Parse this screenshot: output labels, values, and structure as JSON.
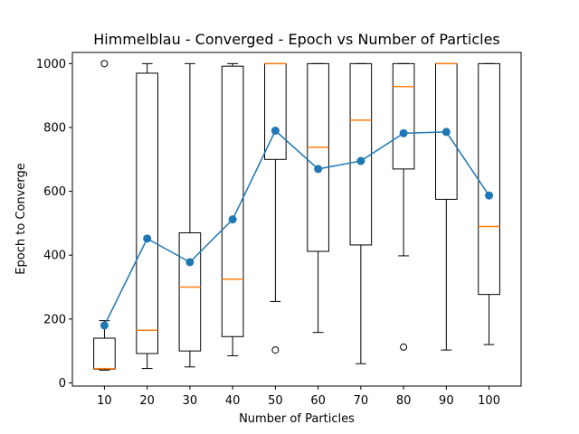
{
  "chart_data": {
    "type": "box",
    "title": "Himmelblau - Converged - Epoch vs Number of Particles",
    "xlabel": "Number of Particles",
    "ylabel": "Epoch to Converge",
    "ylim": [
      -10,
      1035
    ],
    "yticks": [
      "0",
      "200",
      "400",
      "600",
      "800",
      "1000"
    ],
    "yticks_values": [
      0,
      200,
      400,
      600,
      800,
      1000
    ],
    "categories": [
      "10",
      "20",
      "30",
      "40",
      "50",
      "60",
      "70",
      "80",
      "90",
      "100"
    ],
    "grid": false,
    "legend": "none",
    "box_color": "#000000",
    "median_color": "#ff7f0e",
    "mean_color": "#1f77b4",
    "boxes": [
      {
        "whisker_low": 40,
        "q1": 43,
        "median": 45,
        "q3": 140,
        "whisker_high": 195,
        "outliers": [
          1000
        ]
      },
      {
        "whisker_low": 45,
        "q1": 92,
        "median": 165,
        "q3": 970,
        "whisker_high": 1000,
        "outliers": []
      },
      {
        "whisker_low": 50,
        "q1": 100,
        "median": 300,
        "q3": 470,
        "whisker_high": 1000,
        "outliers": []
      },
      {
        "whisker_low": 85,
        "q1": 145,
        "median": 325,
        "q3": 992,
        "whisker_high": 1000,
        "outliers": []
      },
      {
        "whisker_low": 255,
        "q1": 700,
        "median": 1000,
        "q3": 1000,
        "whisker_high": 1000,
        "outliers": [
          103
        ]
      },
      {
        "whisker_low": 158,
        "q1": 412,
        "median": 738,
        "q3": 1000,
        "whisker_high": 1000,
        "outliers": []
      },
      {
        "whisker_low": 60,
        "q1": 432,
        "median": 823,
        "q3": 1000,
        "whisker_high": 1000,
        "outliers": []
      },
      {
        "whisker_low": 398,
        "q1": 670,
        "median": 928,
        "q3": 1000,
        "whisker_high": 1000,
        "outliers": [
          112
        ]
      },
      {
        "whisker_low": 103,
        "q1": 575,
        "median": 1000,
        "q3": 1000,
        "whisker_high": 1000,
        "outliers": []
      },
      {
        "whisker_low": 120,
        "q1": 277,
        "median": 490,
        "q3": 1000,
        "whisker_high": 1000,
        "outliers": []
      }
    ],
    "series": [
      {
        "type": "line",
        "values": [
          180,
          452,
          378,
          512,
          790,
          670,
          695,
          782,
          786,
          587
        ]
      }
    ]
  }
}
